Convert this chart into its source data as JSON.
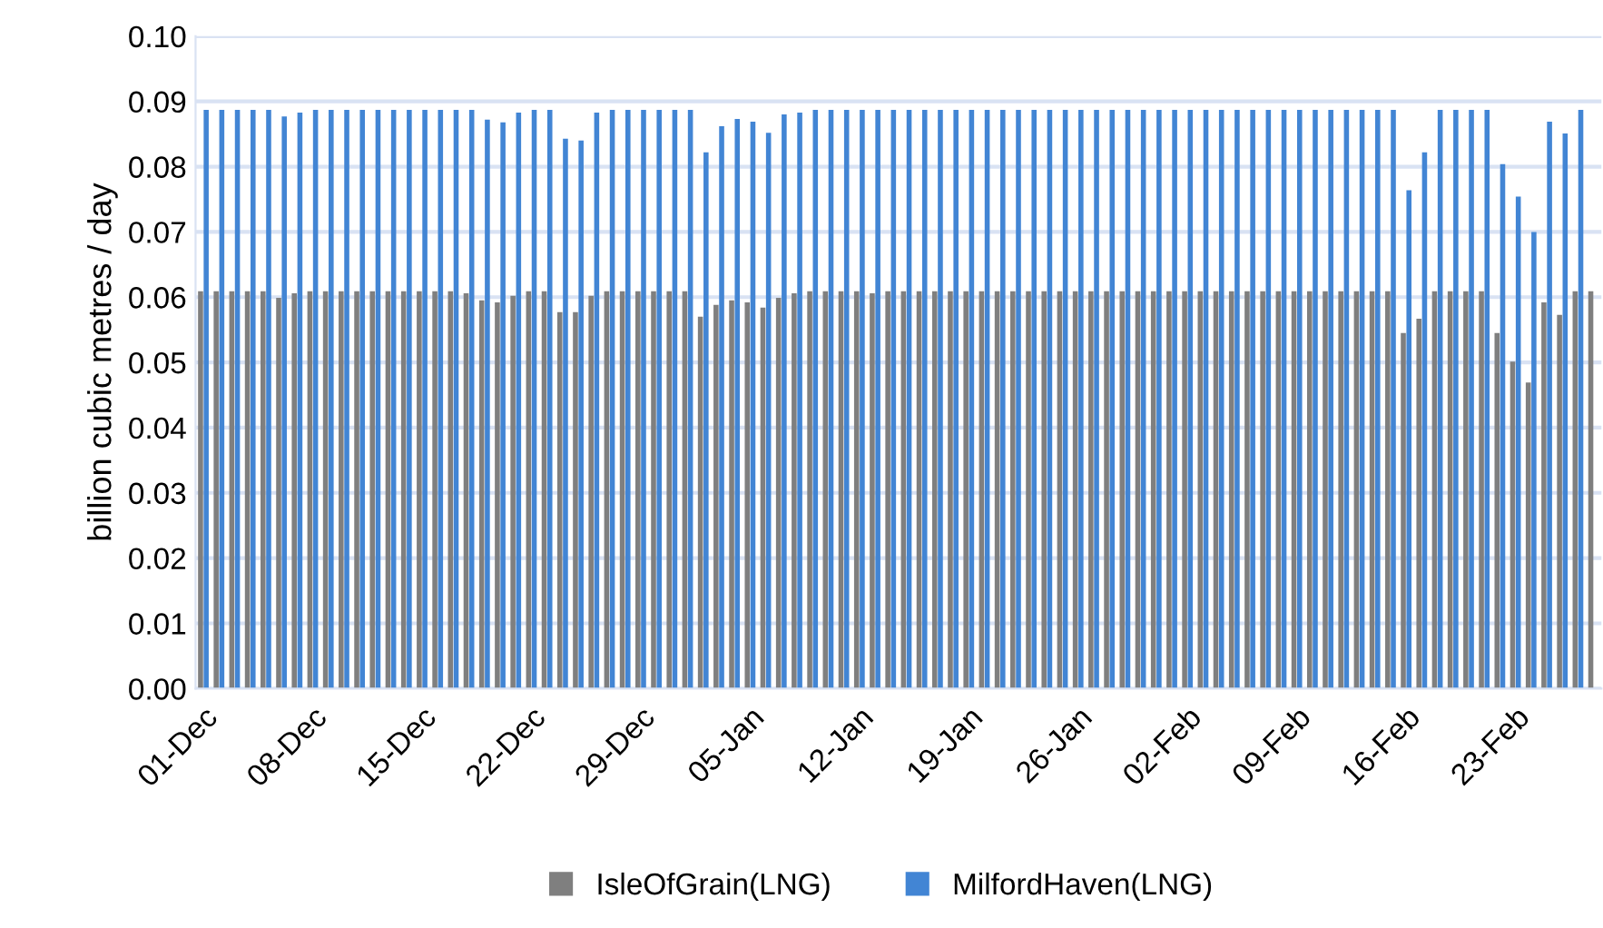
{
  "chart_data": {
    "type": "bar",
    "ylabel": "billion cubic metres / day",
    "categories": [
      "01-Dec",
      null,
      null,
      null,
      null,
      null,
      null,
      "08-Dec",
      null,
      null,
      null,
      null,
      null,
      null,
      "15-Dec",
      null,
      null,
      null,
      null,
      null,
      null,
      "22-Dec",
      null,
      null,
      null,
      null,
      null,
      null,
      "29-Dec",
      null,
      null,
      null,
      null,
      null,
      null,
      "05-Jan",
      null,
      null,
      null,
      null,
      null,
      null,
      "12-Jan",
      null,
      null,
      null,
      null,
      null,
      null,
      "19-Jan",
      null,
      null,
      null,
      null,
      null,
      null,
      "26-Jan",
      null,
      null,
      null,
      null,
      null,
      null,
      "02-Feb",
      null,
      null,
      null,
      null,
      null,
      null,
      "09-Feb",
      null,
      null,
      null,
      null,
      null,
      null,
      "16-Feb",
      null,
      null,
      null,
      null,
      null,
      null,
      "23-Feb",
      null,
      null,
      null,
      null,
      null
    ],
    "series": [
      {
        "name": "IsleOfGrain(LNG)",
        "color": "#7f7f7f",
        "values": [
          0.0609,
          0.0609,
          0.0609,
          0.0609,
          0.0609,
          0.0599,
          0.0606,
          0.0609,
          0.0609,
          0.0609,
          0.0609,
          0.0609,
          0.0609,
          0.0609,
          0.0609,
          0.0609,
          0.0609,
          0.0606,
          0.0595,
          0.0592,
          0.0602,
          0.0609,
          0.0609,
          0.0577,
          0.0577,
          0.0602,
          0.0609,
          0.0609,
          0.0609,
          0.0609,
          0.0609,
          0.0609,
          0.057,
          0.0588,
          0.0595,
          0.0592,
          0.0584,
          0.0599,
          0.0606,
          0.0609,
          0.0609,
          0.0609,
          0.0609,
          0.0606,
          0.0609,
          0.0609,
          0.0609,
          0.0609,
          0.0609,
          0.0609,
          0.0609,
          0.0609,
          0.0609,
          0.0609,
          0.0609,
          0.0609,
          0.0609,
          0.0609,
          0.0609,
          0.0609,
          0.0609,
          0.0609,
          0.0609,
          0.0609,
          0.0609,
          0.0609,
          0.0609,
          0.0609,
          0.0609,
          0.0609,
          0.0609,
          0.0609,
          0.0609,
          0.0609,
          0.0609,
          0.0609,
          0.0609,
          0.0545,
          0.0567,
          0.0609,
          0.0609,
          0.0609,
          0.0609,
          0.0545,
          0.0501,
          0.0469,
          0.0592,
          0.0573,
          0.0609,
          0.0609
        ]
      },
      {
        "name": "MilfordHaven(LNG)",
        "color": "#4285d4",
        "values": [
          0.0887,
          0.0887,
          0.0887,
          0.0887,
          0.0887,
          0.0877,
          0.0883,
          0.0887,
          0.0887,
          0.0887,
          0.0887,
          0.0887,
          0.0887,
          0.0887,
          0.0887,
          0.0887,
          0.0887,
          0.0887,
          0.0872,
          0.0868,
          0.0883,
          0.0887,
          0.0887,
          0.0843,
          0.084,
          0.0883,
          0.0887,
          0.0887,
          0.0887,
          0.0887,
          0.0887,
          0.0887,
          0.0822,
          0.0862,
          0.0873,
          0.0869,
          0.0852,
          0.088,
          0.0883,
          0.0887,
          0.0887,
          0.0887,
          0.0887,
          0.0887,
          0.0887,
          0.0887,
          0.0887,
          0.0887,
          0.0887,
          0.0887,
          0.0887,
          0.0887,
          0.0887,
          0.0887,
          0.0887,
          0.0887,
          0.0887,
          0.0887,
          0.0887,
          0.0887,
          0.0887,
          0.0887,
          0.0887,
          0.0887,
          0.0887,
          0.0887,
          0.0887,
          0.0887,
          0.0887,
          0.0887,
          0.0887,
          0.0887,
          0.0887,
          0.0887,
          0.0887,
          0.0887,
          0.0887,
          0.0764,
          0.0822,
          0.0887,
          0.0887,
          0.0887,
          0.0887,
          0.0804,
          0.0754,
          0.07,
          0.0869,
          0.0851,
          0.0887,
          null
        ]
      }
    ],
    "ylim": [
      0,
      0.1
    ],
    "yticks": [
      {
        "value": 0,
        "label": "0.00"
      },
      {
        "value": 0.01,
        "label": "0.01"
      },
      {
        "value": 0.02,
        "label": "0.02"
      },
      {
        "value": 0.03,
        "label": "0.03"
      },
      {
        "value": 0.04,
        "label": "0.04"
      },
      {
        "value": 0.05,
        "label": "0.05"
      },
      {
        "value": 0.06,
        "label": "0.06"
      },
      {
        "value": 0.07,
        "label": "0.07"
      },
      {
        "value": 0.08,
        "label": "0.08"
      },
      {
        "value": 0.09,
        "label": "0.09"
      },
      {
        "value": 0.1,
        "label": "0.10"
      }
    ],
    "grid": "y",
    "legend": "bottom"
  }
}
